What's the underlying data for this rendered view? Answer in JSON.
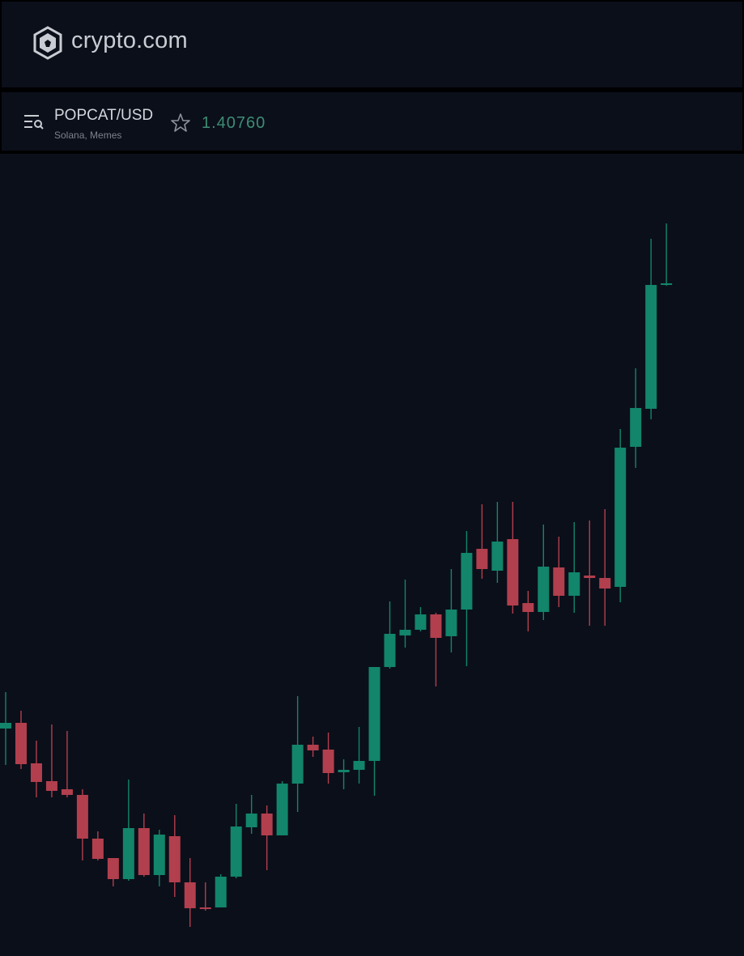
{
  "header": {
    "logo_text": "crypto.com"
  },
  "pair": {
    "symbol": "POPCAT/USD",
    "tags": "Solana, Memes",
    "price": "1.40760"
  },
  "chart_data": {
    "type": "candlestick",
    "ylim": [
      0.5766,
      1.5676
    ],
    "up_color": "#12856b",
    "down_color": "#b23f4d",
    "open": [
      0.8576,
      0.8646,
      0.8146,
      0.7926,
      0.7826,
      0.7756,
      0.7216,
      0.6976,
      0.6716,
      0.7346,
      0.6766,
      0.7246,
      0.6676,
      0.6366,
      0.6366,
      0.6746,
      0.7356,
      0.7526,
      0.7256,
      0.7896,
      0.8376,
      0.8316,
      0.8036,
      0.8066,
      0.8176,
      0.9336,
      0.9726,
      0.9796,
      0.9986,
      0.9716,
      1.0046,
      1.0796,
      1.0526,
      1.0916,
      1.0126,
      1.0016,
      1.0566,
      1.0216,
      1.0466,
      1.0436,
      1.0326,
      1.2056,
      1.2526,
      1.4056
    ],
    "high": [
      0.9026,
      0.8796,
      0.8426,
      0.8626,
      0.8546,
      0.7826,
      0.7306,
      0.6976,
      0.7946,
      0.7526,
      0.7326,
      0.7506,
      0.6976,
      0.6676,
      0.6776,
      0.7646,
      0.7756,
      0.7626,
      0.7926,
      0.8976,
      0.8476,
      0.8526,
      0.8196,
      0.8596,
      0.9336,
      1.0146,
      1.0416,
      1.0076,
      1.0006,
      1.0546,
      1.1016,
      1.1346,
      1.1376,
      1.1376,
      1.0276,
      1.1096,
      1.0946,
      1.1126,
      1.1146,
      1.1286,
      1.2276,
      1.3026,
      1.4626,
      1.4816
    ],
    "low": [
      0.8126,
      0.8076,
      0.7726,
      0.7726,
      0.7726,
      0.6946,
      0.6946,
      0.6626,
      0.6696,
      0.6746,
      0.6626,
      0.6496,
      0.6126,
      0.6326,
      0.6366,
      0.6726,
      0.7276,
      0.6826,
      0.7256,
      0.7546,
      0.8226,
      0.7896,
      0.7826,
      0.7896,
      0.7746,
      0.9316,
      0.9576,
      0.9776,
      0.9096,
      0.9516,
      0.9346,
      1.0426,
      1.0376,
      0.9996,
      0.9776,
      0.9916,
      1.0076,
      1.0006,
      0.9846,
      0.9846,
      1.0136,
      1.1796,
      1.2396,
      1.4046
    ],
    "close": [
      0.8646,
      0.8136,
      0.7916,
      0.7806,
      0.7756,
      0.7216,
      0.6966,
      0.6716,
      0.7346,
      0.6766,
      0.7266,
      0.6676,
      0.6356,
      0.6346,
      0.6746,
      0.7366,
      0.7526,
      0.7256,
      0.7896,
      0.8376,
      0.8306,
      0.8026,
      0.8066,
      0.8176,
      0.9336,
      0.9746,
      0.9796,
      0.9986,
      0.9696,
      1.0046,
      1.0746,
      1.0546,
      1.0886,
      1.0096,
      1.0016,
      1.0576,
      1.0216,
      1.0506,
      1.0436,
      1.0306,
      1.2046,
      1.2536,
      1.4056,
      1.4076
    ]
  }
}
